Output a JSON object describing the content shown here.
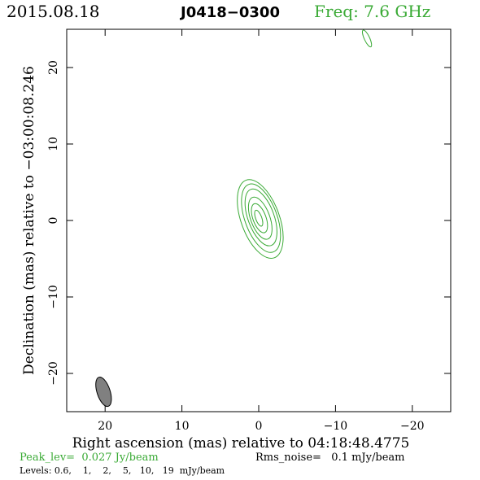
{
  "header": {
    "date": "2015.08.18",
    "source": "J0418−0300",
    "freq": "Freq: 7.6 GHz"
  },
  "colors": {
    "contour": "#3aaa35",
    "beam_fill": "#808080",
    "frame": "#000000"
  },
  "chart_data": {
    "type": "contour",
    "xlabel": "Right ascension (mas) relative to 04:18:48.4775",
    "ylabel": "Declination (mas) relative to −03:00:08.246",
    "xlim": [
      25,
      -25
    ],
    "ylim": [
      -25,
      25
    ],
    "x_ticks": [
      20,
      10,
      0,
      -10,
      -20
    ],
    "x_tick_labels": [
      "20",
      "10",
      "0",
      "−10",
      "−20"
    ],
    "y_ticks": [
      -20,
      -10,
      0,
      10,
      20
    ],
    "y_tick_labels": [
      "−20",
      "−10",
      "0",
      "10",
      "20"
    ],
    "levels_mJy": [
      0.6,
      1,
      2,
      5,
      10,
      19
    ],
    "contours": [
      {
        "level": 0.6,
        "cx": -0.2,
        "cy": 0.2,
        "rx": 2.5,
        "ry": 5.4,
        "rot": -20
      },
      {
        "level": 1,
        "cx": -0.3,
        "cy": 0.3,
        "rx": 2.1,
        "ry": 4.7,
        "rot": -20
      },
      {
        "level": 2,
        "cx": -0.3,
        "cy": 0.4,
        "rx": 1.7,
        "ry": 3.9,
        "rot": -20
      },
      {
        "level": 5,
        "cx": -0.2,
        "cy": 0.3,
        "rx": 1.25,
        "ry": 2.9,
        "rot": -20
      },
      {
        "level": 10,
        "cx": -0.1,
        "cy": 0.3,
        "rx": 0.85,
        "ry": 2.0,
        "rot": -20
      },
      {
        "level": 19,
        "cx": 0.0,
        "cy": 0.3,
        "rx": 0.4,
        "ry": 1.1,
        "rot": -20
      }
    ],
    "outlier_contours": [
      {
        "level": 0.6,
        "cx": -14.1,
        "cy": 23.8,
        "rx": 0.35,
        "ry": 1.2,
        "rot": -25
      }
    ],
    "beam": {
      "cx": 20.2,
      "cy": -22.4,
      "rx": 0.85,
      "ry": 2.0,
      "rot": -18
    },
    "peak": "Peak_lev=  0.027 Jy/beam",
    "rms": "Rms_noise=   0.1 mJy/beam",
    "levels_text": "Levels: 0.6,    1,    2,    5,   10,   19  mJy/beam"
  }
}
